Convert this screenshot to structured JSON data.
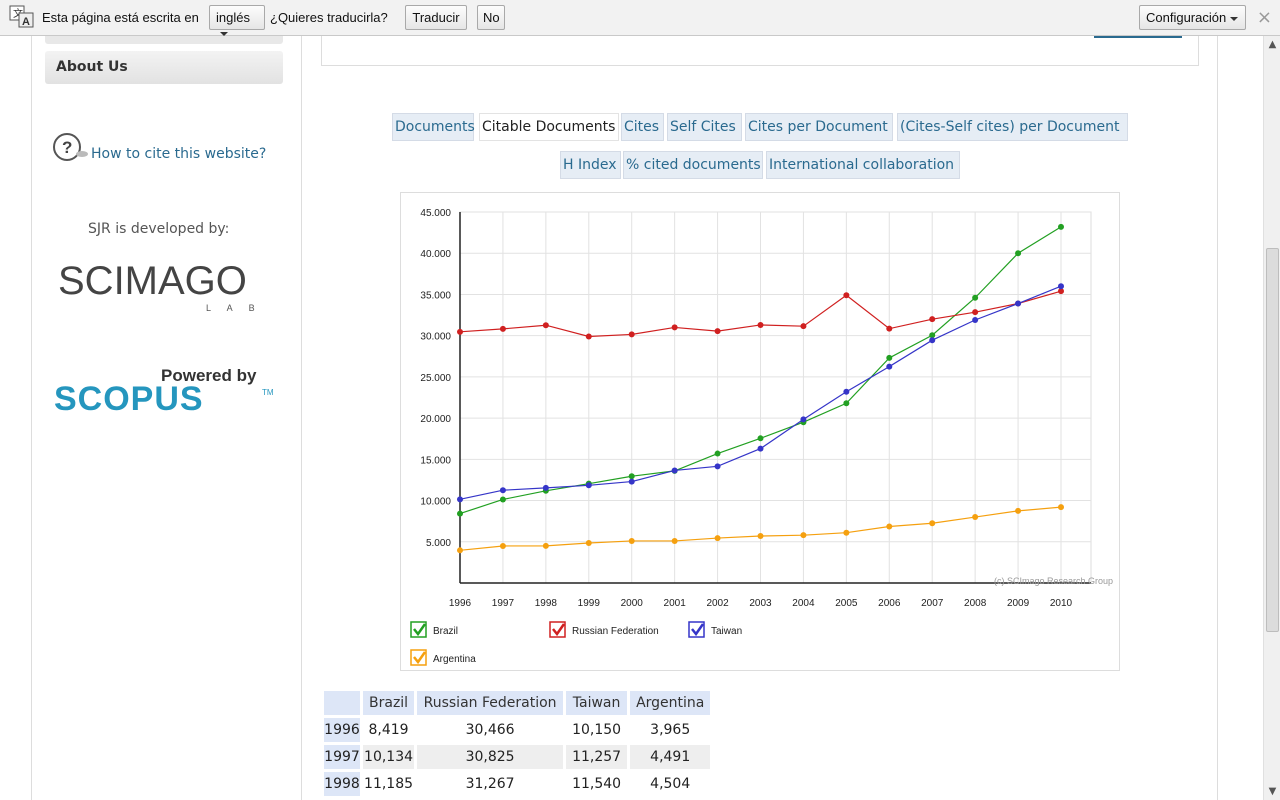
{
  "translate_bar": {
    "prefix": "Esta página está escrita en",
    "language": "inglés",
    "question": "¿Quieres traducirla?",
    "translate_button": "Traducir",
    "no_button": "No",
    "settings_button": "Configuración",
    "close": "×"
  },
  "sidebar": {
    "about_label": "About Us",
    "cite_link": "How to cite this website?",
    "developed_by": "SJR is developed by:",
    "scimago_logo": "SCIMAGO",
    "scimago_sub": "L A B",
    "powered_by": "Powered by",
    "scopus_logo": "SCOPUS",
    "scopus_tm": "TM"
  },
  "tabs_row1": [
    "Documents",
    "Citable Documents",
    "Cites",
    "Self Cites",
    "Cites per Document",
    "(Cites-Self cites) per Document"
  ],
  "tabs_row2": [
    "H Index",
    "% cited documents",
    "International collaboration"
  ],
  "active_tab": "Citable Documents",
  "chart_data": {
    "type": "line",
    "x": [
      1996,
      1997,
      1998,
      1999,
      2000,
      2001,
      2002,
      2003,
      2004,
      2005,
      2006,
      2007,
      2008,
      2009,
      2010
    ],
    "xlabels": [
      "1996",
      "1997",
      "1998",
      "1999",
      "2000",
      "2001",
      "2002",
      "2003",
      "2004",
      "2005",
      "2006",
      "2007",
      "2008",
      "2009",
      "2010"
    ],
    "ylim": [
      0,
      45000
    ],
    "yticks": [
      5000,
      10000,
      15000,
      20000,
      25000,
      30000,
      35000,
      40000,
      45000
    ],
    "ytick_labels": [
      "5.000",
      "10.000",
      "15.000",
      "20.000",
      "25.000",
      "30.000",
      "35.000",
      "40.000",
      "45.000"
    ],
    "grid": true,
    "legend_position": "bottom",
    "watermark": "(c) SCImago Research Group",
    "series": [
      {
        "name": "Brazil",
        "color": "#22a022",
        "values": [
          8419,
          10134,
          11185,
          12050,
          12950,
          13600,
          15700,
          17550,
          19500,
          21800,
          27300,
          30050,
          34600,
          40000,
          43200
        ]
      },
      {
        "name": "Russian Federation",
        "color": "#d02020",
        "values": [
          30466,
          30825,
          31267,
          29900,
          30150,
          31000,
          30550,
          31300,
          31150,
          34900,
          30850,
          32000,
          32850,
          33900,
          35400
        ]
      },
      {
        "name": "Taiwan",
        "color": "#3535c8",
        "values": [
          10150,
          11257,
          11540,
          11850,
          12300,
          13650,
          14150,
          16300,
          19850,
          23200,
          26250,
          29450,
          31900,
          33900,
          36000
        ]
      },
      {
        "name": "Argentina",
        "color": "#f5a00f",
        "values": [
          3965,
          4491,
          4504,
          4850,
          5100,
          5100,
          5450,
          5700,
          5800,
          6100,
          6850,
          7250,
          8000,
          8750,
          9200
        ]
      }
    ]
  },
  "table": {
    "headers": [
      "",
      "Brazil",
      "Russian Federation",
      "Taiwan",
      "Argentina"
    ],
    "rows": [
      [
        "1996",
        "8,419",
        "30,466",
        "10,150",
        "3,965"
      ],
      [
        "1997",
        "10,134",
        "30,825",
        "11,257",
        "4,491"
      ],
      [
        "1998",
        "11,185",
        "31,267",
        "11,540",
        "4,504"
      ]
    ]
  }
}
